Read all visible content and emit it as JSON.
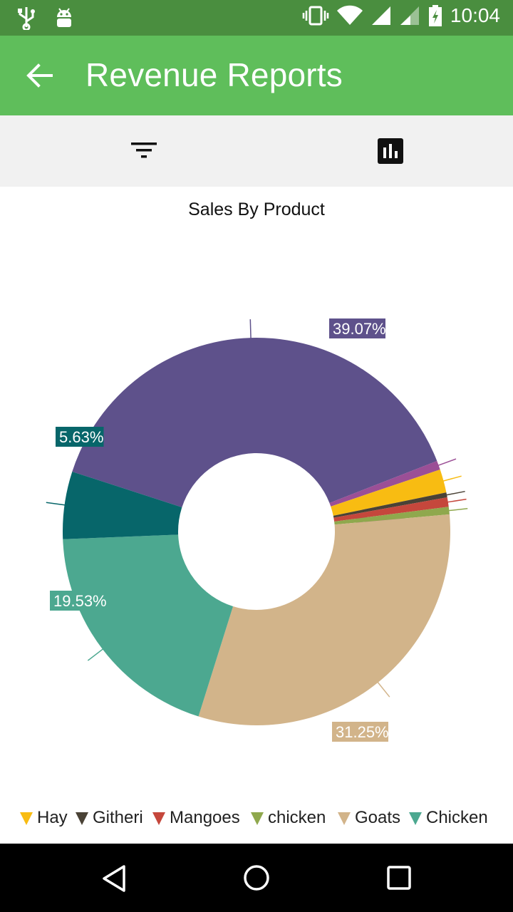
{
  "status_bar": {
    "time": "10:04",
    "icons": [
      "usb-icon",
      "android-icon",
      "vibrate-icon",
      "wifi-icon",
      "signal-icon",
      "signal-weak-icon",
      "battery-charging-icon"
    ]
  },
  "app_bar": {
    "title": "Revenue Reports",
    "back_icon": "arrow-back-icon",
    "color": "#5fbe5b",
    "status_color": "#4a8e3f"
  },
  "toolbar": {
    "filter_icon": "filter-icon",
    "chart_icon": "bar-chart-icon"
  },
  "chart_data": {
    "type": "pie",
    "title": "Sales By Product",
    "donut": true,
    "legend_position": "bottom",
    "slices": [
      {
        "label": "39.07%",
        "value": 39.07,
        "color": "#5e518b"
      },
      {
        "label": "0.75%",
        "value": 0.75,
        "color": "#9b4f96"
      },
      {
        "label": "1.95%",
        "value": 1.95,
        "color": "#f8bc12",
        "legend": "Hay"
      },
      {
        "label": "0.41%",
        "value": 0.41,
        "color": "#4a4236",
        "legend": "Githeri"
      },
      {
        "label": "0.78%",
        "value": 0.78,
        "color": "#c5473c",
        "legend": "Mangoes"
      },
      {
        "label": "0.63%",
        "value": 0.63,
        "color": "#8fa84d",
        "legend": "chicken"
      },
      {
        "label": "31.25%",
        "value": 31.25,
        "color": "#d2b48a",
        "legend": "Goats"
      },
      {
        "label": "19.53%",
        "value": 19.53,
        "color": "#4ca890",
        "legend": "Chicken"
      },
      {
        "label": "5.63%",
        "value": 5.63,
        "color": "#07666a"
      }
    ],
    "legend_items": [
      {
        "name": "Hay",
        "color": "#f8bc12"
      },
      {
        "name": "Githeri",
        "color": "#4a4236"
      },
      {
        "name": "Mangoes",
        "color": "#c5473c"
      },
      {
        "name": "chicken",
        "color": "#8fa84d"
      },
      {
        "name": "Goats",
        "color": "#d2b48a"
      },
      {
        "name": "Chicken",
        "color": "#4ca890"
      }
    ]
  },
  "nav_bar": {
    "icons": [
      "back-triangle-icon",
      "home-circle-icon",
      "recents-square-icon"
    ]
  }
}
